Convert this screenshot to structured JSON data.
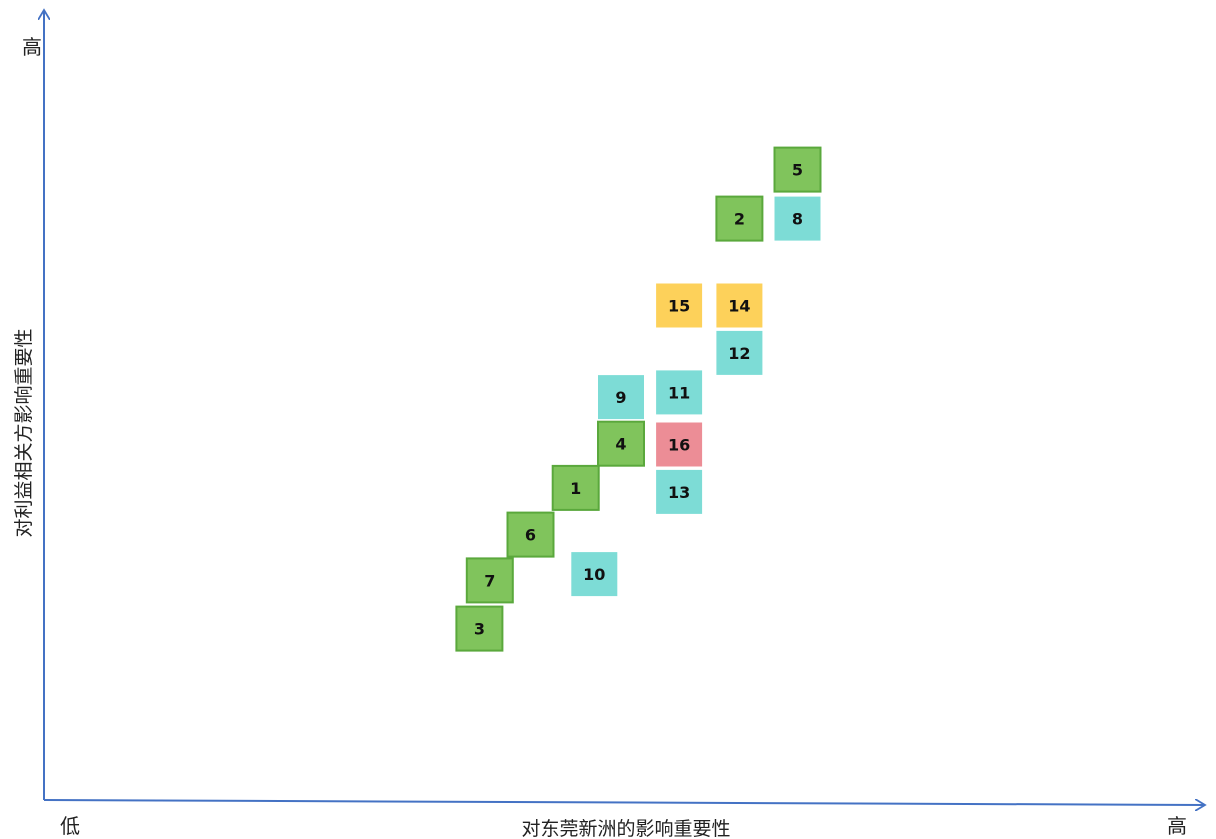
{
  "chart_data": {
    "type": "scatter",
    "title": "",
    "xlabel": "对东莞新洲的影响重要性",
    "ylabel": "对利益相关方影响重要性",
    "x_low": "低",
    "x_high": "高",
    "y_high": "高",
    "xlim": [
      0,
      100
    ],
    "ylim": [
      0,
      100
    ],
    "grid": false,
    "colors": {
      "green": "#80c45c",
      "green_border": "#5aa83c",
      "teal": "#7ddcd6",
      "yellow": "#fdd15a",
      "pink": "#ec8d96",
      "axis": "#4472c4"
    },
    "points": [
      {
        "label": "5",
        "x": 64.9,
        "y": 79.8,
        "color": "green"
      },
      {
        "label": "2",
        "x": 59.9,
        "y": 73.6,
        "color": "green"
      },
      {
        "label": "8",
        "x": 64.9,
        "y": 73.6,
        "color": "teal"
      },
      {
        "label": "15",
        "x": 54.7,
        "y": 62.6,
        "color": "yellow"
      },
      {
        "label": "14",
        "x": 59.9,
        "y": 62.6,
        "color": "yellow"
      },
      {
        "label": "12",
        "x": 59.9,
        "y": 56.6,
        "color": "teal"
      },
      {
        "label": "9",
        "x": 49.7,
        "y": 51.0,
        "color": "teal"
      },
      {
        "label": "11",
        "x": 54.7,
        "y": 51.6,
        "color": "teal"
      },
      {
        "label": "4",
        "x": 49.7,
        "y": 45.1,
        "color": "green"
      },
      {
        "label": "16",
        "x": 54.7,
        "y": 45.0,
        "color": "pink"
      },
      {
        "label": "1",
        "x": 45.8,
        "y": 39.5,
        "color": "green"
      },
      {
        "label": "13",
        "x": 54.7,
        "y": 39.0,
        "color": "teal"
      },
      {
        "label": "6",
        "x": 41.9,
        "y": 33.6,
        "color": "green"
      },
      {
        "label": "10",
        "x": 47.4,
        "y": 28.6,
        "color": "teal"
      },
      {
        "label": "7",
        "x": 38.4,
        "y": 27.8,
        "color": "green"
      },
      {
        "label": "3",
        "x": 37.5,
        "y": 21.7,
        "color": "green"
      }
    ]
  }
}
